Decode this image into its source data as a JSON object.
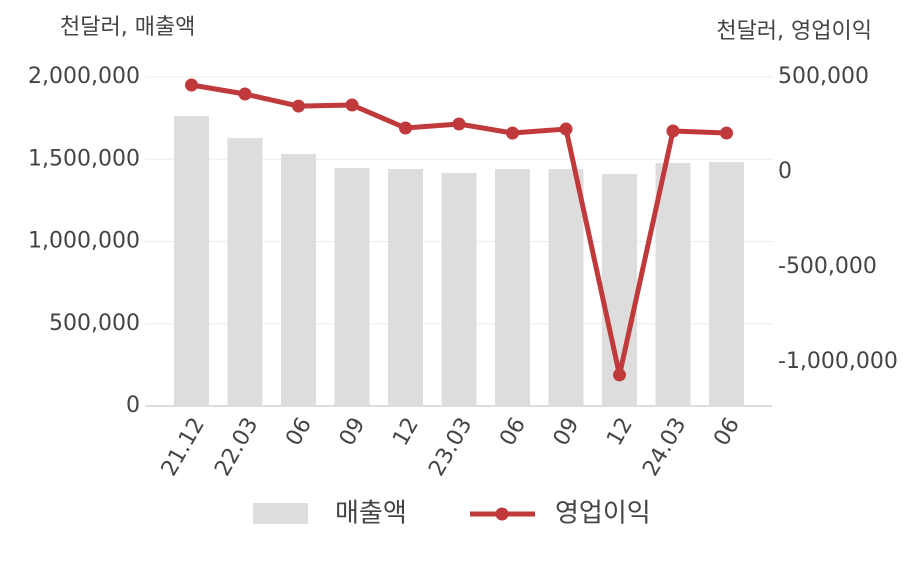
{
  "chart_data": {
    "type": "bar",
    "y_label": "천달러, 매출액",
    "y2_label": "천달러, 영업이익",
    "categories": [
      "21.12",
      "22.03",
      "06",
      "09",
      "12",
      "23.03",
      "06",
      "09",
      "12",
      "24.03",
      "06"
    ],
    "series": [
      {
        "name": "매출액",
        "type": "bar",
        "color": "#dddddd",
        "values": [
          1763000,
          1629000,
          1532000,
          1447000,
          1441000,
          1416000,
          1441000,
          1441000,
          1410000,
          1477000,
          1483000
        ]
      },
      {
        "name": "영업이익",
        "type": "line",
        "color": "#c0393b",
        "axis": "y2",
        "values": [
          458000,
          410500,
          347000,
          352600,
          231600,
          252600,
          205000,
          226000,
          -1068000,
          215800,
          205000
        ]
      }
    ],
    "ylim": [
      0,
      2000000
    ],
    "yticks": [
      0,
      {
        "value": 500000,
        "label": "500,000"
      },
      {
        "value": 1000000,
        "label": "1,000,000"
      },
      {
        "value": 1500000,
        "label": "1,500,000"
      },
      {
        "value": 2000000,
        "label": "2,000,000"
      }
    ],
    "y2lim": [
      -1231579,
      500000
    ],
    "y2ticks": [
      {
        "value": 500000,
        "label": "500,000"
      },
      0,
      {
        "value": -500000,
        "label": "-500,000"
      },
      {
        "value": -1000000,
        "label": "-1,000,000"
      }
    ],
    "grid": true
  }
}
